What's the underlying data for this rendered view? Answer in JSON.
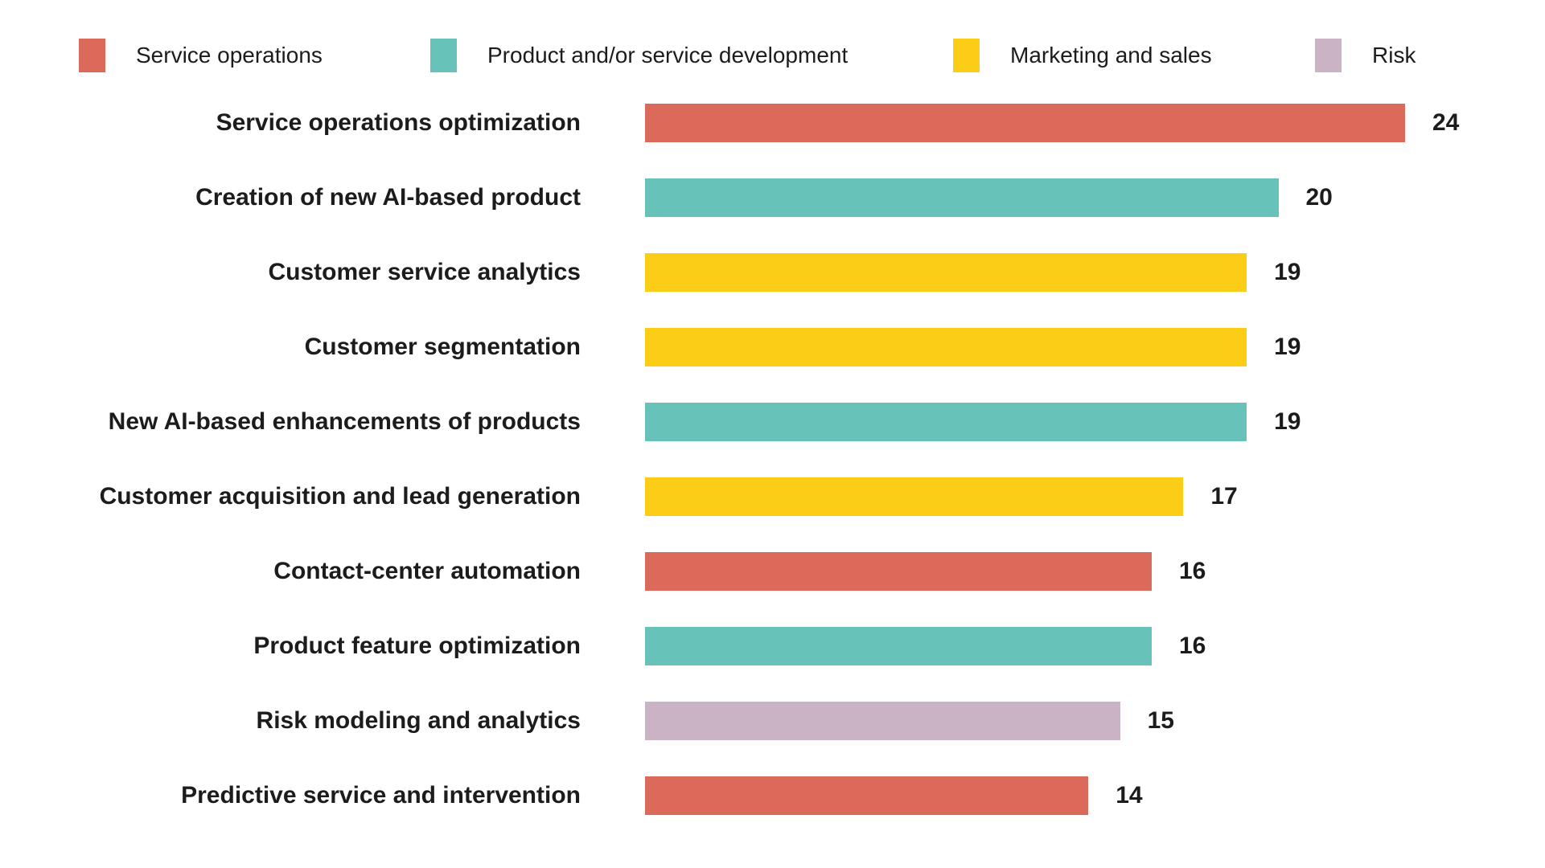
{
  "legend": {
    "items": [
      {
        "label": "Service operations",
        "color": "#db6a5b"
      },
      {
        "label": "Product and/or service development",
        "color": "#67c2ba"
      },
      {
        "label": "Marketing and sales",
        "color": "#fbcd17"
      },
      {
        "label": "Risk",
        "color": "#c9b3c4"
      }
    ]
  },
  "chart_data": {
    "type": "bar",
    "orientation": "horizontal",
    "title": "",
    "xlabel": "",
    "ylabel": "",
    "xlim": [
      0,
      24
    ],
    "grid": false,
    "legend_position": "top",
    "value_labels": true,
    "categories": [
      "Service operations optimization",
      "Creation of new AI-based product",
      "Customer service analytics",
      "Customer segmentation",
      "New AI-based enhancements of products",
      "Customer acquisition and lead generation",
      "Contact-center automation",
      "Product feature optimization",
      "Risk modeling and analytics",
      "Predictive service and intervention"
    ],
    "values": [
      24,
      20,
      19,
      19,
      19,
      17,
      16,
      16,
      15,
      14
    ],
    "series_by_row": [
      "Service operations",
      "Product and/or service development",
      "Marketing and sales",
      "Marketing and sales",
      "Product and/or service development",
      "Marketing and sales",
      "Service operations",
      "Product and/or service development",
      "Risk",
      "Service operations"
    ]
  }
}
